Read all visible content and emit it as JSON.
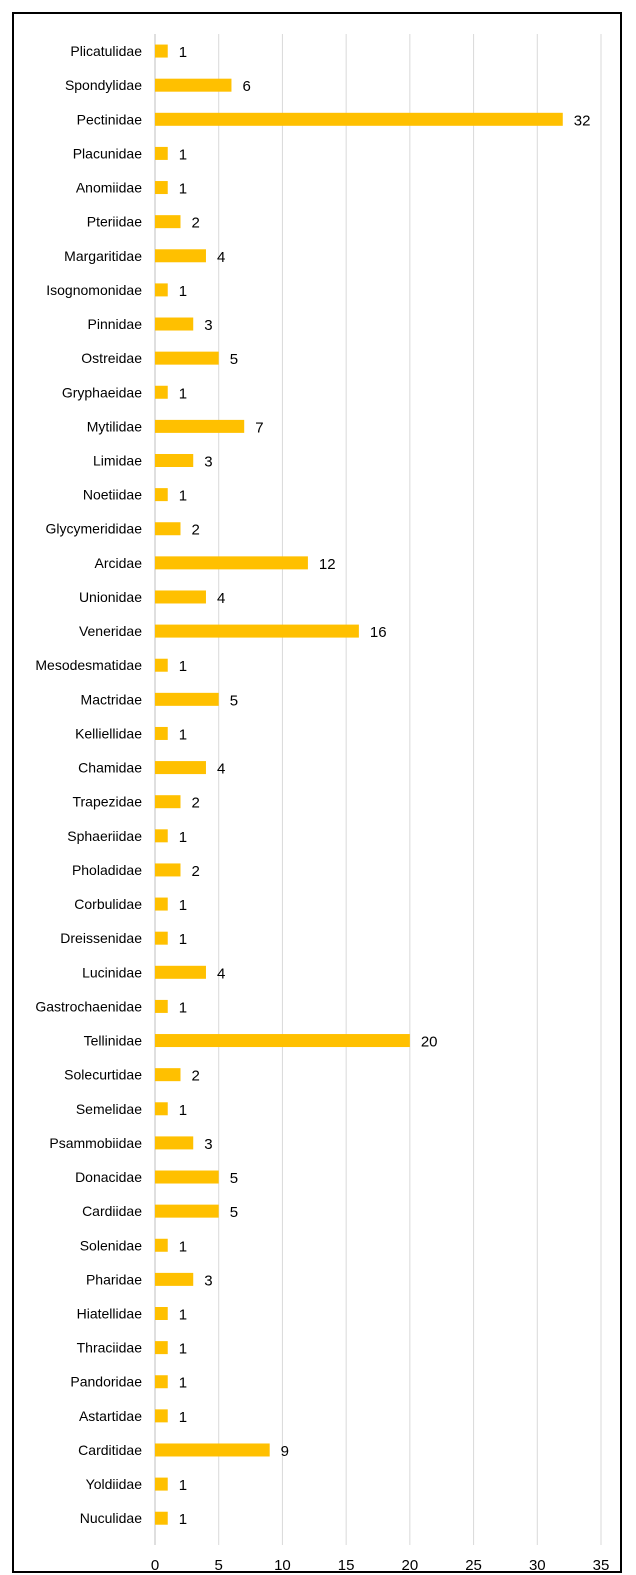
{
  "chart_data": {
    "type": "bar",
    "orientation": "horizontal",
    "categories": [
      "Plicatulidae",
      "Spondylidae",
      "Pectinidae",
      "Placunidae",
      "Anomiidae",
      "Pteriidae",
      "Margaritidae",
      "Isognomonidae",
      "Pinnidae",
      "Ostreidae",
      "Gryphaeidae",
      "Mytilidae",
      "Limidae",
      "Noetiidae",
      "Glycymerididae",
      "Arcidae",
      "Unionidae",
      "Veneridae",
      "Mesodesmatidae",
      "Mactridae",
      "Kelliellidae",
      "Chamidae",
      "Trapezidae",
      "Sphaeriidae",
      "Pholadidae",
      "Corbulidae",
      "Dreissenidae",
      "Lucinidae",
      "Gastrochaenidae",
      "Tellinidae",
      "Solecurtidae",
      "Semelidae",
      "Psammobiidae",
      "Donacidae",
      "Cardiidae",
      "Solenidae",
      "Pharidae",
      "Hiatellidae",
      "Thraciidae",
      "Pandoridae",
      "Astartidae",
      "Carditidae",
      "Yoldiidae",
      "Nuculidae"
    ],
    "values": [
      1,
      6,
      32,
      1,
      1,
      2,
      4,
      1,
      3,
      5,
      1,
      7,
      3,
      1,
      2,
      12,
      4,
      16,
      1,
      5,
      1,
      4,
      2,
      1,
      2,
      1,
      1,
      4,
      1,
      20,
      2,
      1,
      3,
      5,
      5,
      1,
      3,
      1,
      1,
      1,
      1,
      9,
      1,
      1
    ],
    "xlim": [
      0,
      35
    ],
    "xticks": [
      "0",
      "5",
      "10",
      "15",
      "20",
      "25",
      "30",
      "35"
    ],
    "grid": true,
    "data_labels": true,
    "bar_color": "#FFC000",
    "title": "",
    "xlabel": "",
    "ylabel": ""
  }
}
